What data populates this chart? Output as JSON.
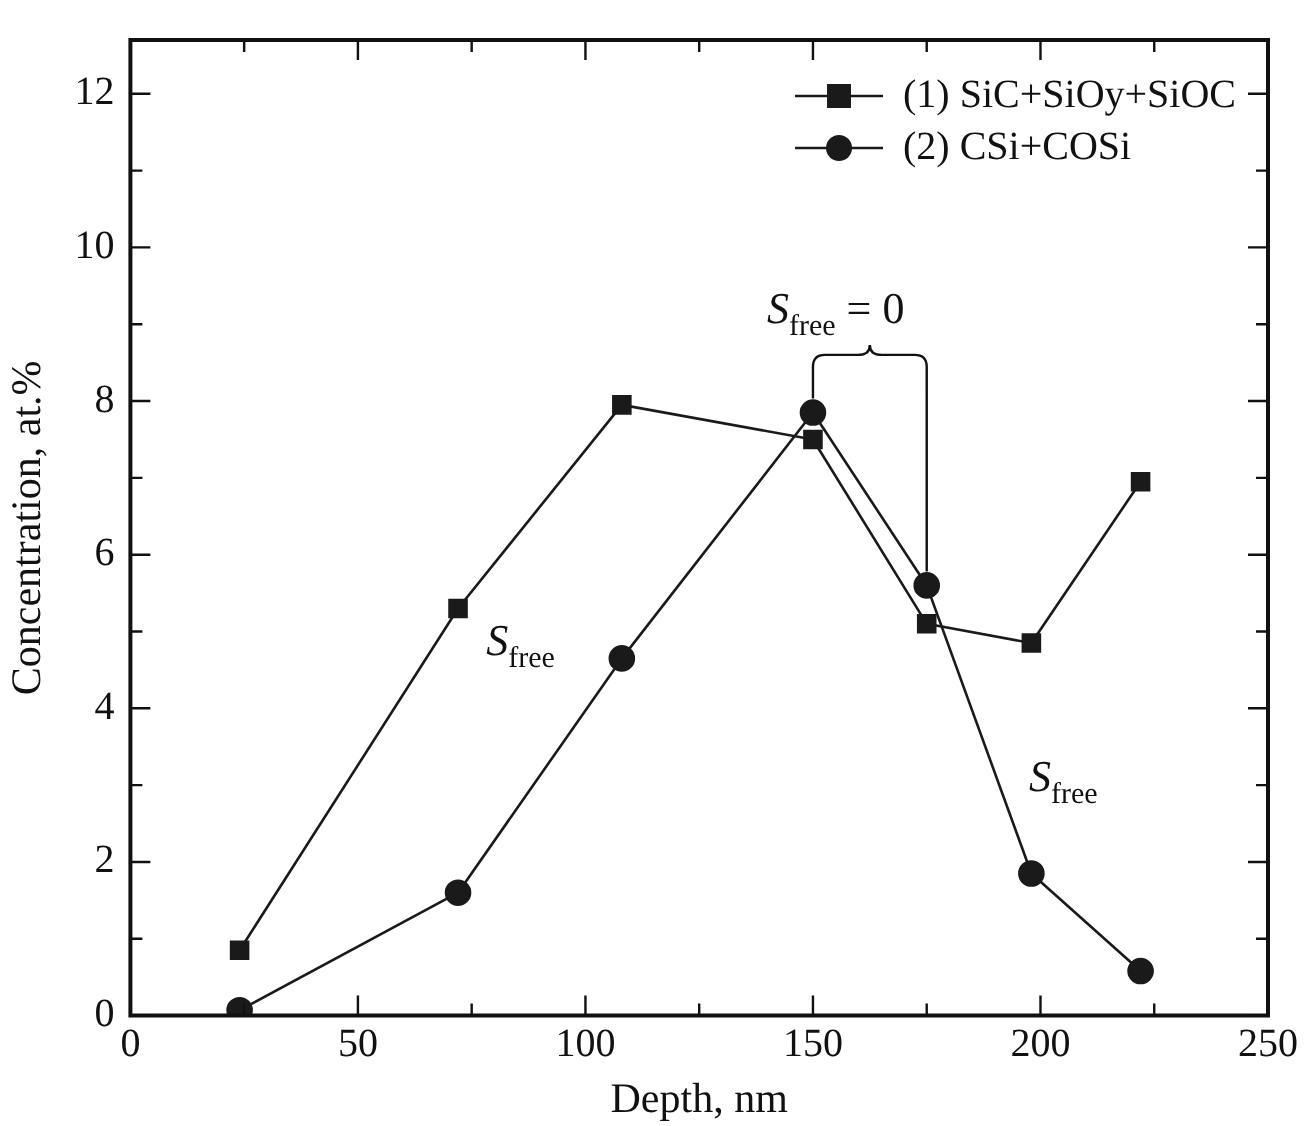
{
  "chart_data": {
    "type": "line",
    "xlabel": "Depth, nm",
    "ylabel": "Concentration, at.%",
    "x": [
      24,
      72,
      108,
      150,
      175,
      198,
      222
    ],
    "series": [
      {
        "name": "(1) SiC+SiOy+SiOC",
        "color": "#1a1a1a",
        "marker": "square",
        "values": [
          0.85,
          5.3,
          7.95,
          7.5,
          5.1,
          4.85,
          6.95
        ]
      },
      {
        "name": "(2) CSi+COSi",
        "color": "#1a1a1a",
        "marker": "circle",
        "values": [
          0.07,
          1.6,
          4.65,
          7.85,
          5.6,
          1.85,
          0.58
        ]
      }
    ],
    "xlim": [
      0,
      250
    ],
    "xticks": [
      0,
      {
        "value": 25,
        "label": null
      },
      50,
      {
        "value": 75,
        "label": null
      },
      100,
      {
        "value": 125,
        "label": null
      },
      150,
      {
        "value": 175,
        "label": null
      },
      200,
      {
        "value": 225,
        "label": null
      },
      250
    ],
    "ylim": [
      0,
      12.7
    ],
    "yticks": [
      0,
      {
        "value": 1,
        "label": null
      },
      2,
      {
        "value": 3,
        "label": null
      },
      4,
      {
        "value": 5,
        "label": null
      },
      6,
      {
        "value": 7,
        "label": null
      },
      8,
      {
        "value": 9,
        "label": null
      },
      10,
      {
        "value": 11,
        "label": null
      },
      12
    ],
    "legend": "top right",
    "grid": false,
    "annotations": [
      "S$_{free}$",
      "S$_{free}$",
      "S$_{free}$ = 0"
    ]
  }
}
